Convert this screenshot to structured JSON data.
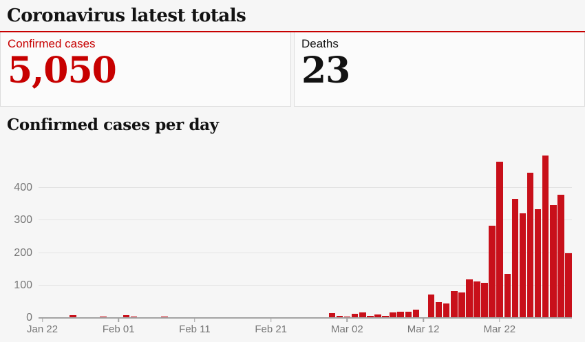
{
  "header": {
    "title": "Coronavirus latest totals"
  },
  "stats": {
    "confirmed": {
      "label": "Confirmed cases",
      "value": "5,050"
    },
    "deaths": {
      "label": "Deaths",
      "value": "23"
    }
  },
  "chart_heading": "Confirmed cases per day",
  "colors": {
    "accent_red": "#c70000",
    "bar_red": "#c8101a",
    "text_dark": "#121212",
    "axis_text_gray": "#767676",
    "gridline_gray": "#e3e3e3",
    "background": "#f6f6f6"
  },
  "chart_data": {
    "type": "bar",
    "title": "Confirmed cases per day",
    "xlabel": "",
    "ylabel": "",
    "ylim": [
      0,
      500
    ],
    "yticks": [
      0,
      100,
      200,
      300,
      400
    ],
    "grid": true,
    "legend": null,
    "bar_color": "#c8101a",
    "xtick_labels": [
      "Jan 22",
      "Feb 01",
      "Feb 11",
      "Feb 21",
      "Mar 02",
      "Mar 12",
      "Mar 22"
    ],
    "xtick_indices": [
      0,
      10,
      20,
      30,
      40,
      50,
      60
    ],
    "x": [
      "Jan 22",
      "Jan 23",
      "Jan 24",
      "Jan 25",
      "Jan 26",
      "Jan 27",
      "Jan 28",
      "Jan 29",
      "Jan 30",
      "Jan 31",
      "Feb 01",
      "Feb 02",
      "Feb 03",
      "Feb 04",
      "Feb 05",
      "Feb 06",
      "Feb 07",
      "Feb 08",
      "Feb 09",
      "Feb 10",
      "Feb 11",
      "Feb 12",
      "Feb 13",
      "Feb 14",
      "Feb 15",
      "Feb 16",
      "Feb 17",
      "Feb 18",
      "Feb 19",
      "Feb 20",
      "Feb 21",
      "Feb 22",
      "Feb 23",
      "Feb 24",
      "Feb 25",
      "Feb 26",
      "Feb 27",
      "Feb 28",
      "Feb 29",
      "Mar 01",
      "Mar 02",
      "Mar 03",
      "Mar 04",
      "Mar 05",
      "Mar 06",
      "Mar 07",
      "Mar 08",
      "Mar 09",
      "Mar 10",
      "Mar 11",
      "Mar 12",
      "Mar 13",
      "Mar 14",
      "Mar 15",
      "Mar 16",
      "Mar 17",
      "Mar 18",
      "Mar 19",
      "Mar 20",
      "Mar 21",
      "Mar 22",
      "Mar 23",
      "Mar 24",
      "Mar 25",
      "Mar 26",
      "Mar 27",
      "Mar 28",
      "Mar 29",
      "Mar 30",
      "Mar 31"
    ],
    "values": [
      0,
      0,
      0,
      0,
      9,
      3,
      0,
      2,
      5,
      0,
      0,
      8,
      4,
      2,
      0,
      3,
      4,
      2,
      0,
      0,
      0,
      0,
      0,
      0,
      0,
      0,
      0,
      0,
      0,
      0,
      0,
      0,
      0,
      0,
      0,
      0,
      0,
      0,
      14,
      6,
      4,
      13,
      18,
      6,
      11,
      7,
      18,
      19,
      19,
      26,
      0,
      72,
      48,
      45,
      82,
      78,
      119,
      112,
      109,
      283,
      481,
      136,
      366,
      322,
      447,
      334,
      499,
      348,
      379,
      200
    ]
  }
}
